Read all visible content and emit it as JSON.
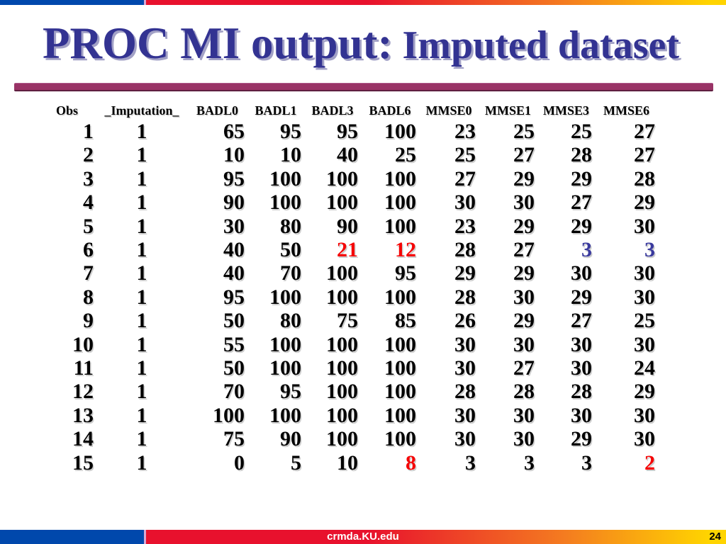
{
  "slide": {
    "title_part1": "PROC MI output:",
    "title_part2": "Imputed dataset",
    "footer": {
      "site": "crmda.KU.edu",
      "page_number": "24"
    }
  },
  "table": {
    "columns": [
      "Obs",
      "_Imputation_",
      "BADL0",
      "BADL1",
      "BADL3",
      "BADL6",
      "MMSE0",
      "MMSE1",
      "MMSE3",
      "MMSE6"
    ],
    "rows": [
      [
        "1",
        "1",
        "65",
        "95",
        "95",
        "100",
        "23",
        "25",
        "25",
        "27"
      ],
      [
        "2",
        "1",
        "10",
        "10",
        "40",
        "25",
        "25",
        "27",
        "28",
        "27"
      ],
      [
        "3",
        "1",
        "95",
        "100",
        "100",
        "100",
        "27",
        "29",
        "29",
        "28"
      ],
      [
        "4",
        "1",
        "90",
        "100",
        "100",
        "100",
        "30",
        "30",
        "27",
        "29"
      ],
      [
        "5",
        "1",
        "30",
        "80",
        "90",
        "100",
        "23",
        "29",
        "29",
        "30"
      ],
      [
        "6",
        "1",
        "40",
        "50",
        {
          "v": "21",
          "c": "red"
        },
        {
          "v": "12",
          "c": "red"
        },
        "28",
        "27",
        {
          "v": "3",
          "c": "blue"
        },
        {
          "v": "3",
          "c": "blue"
        }
      ],
      [
        "7",
        "1",
        "40",
        "70",
        "100",
        "95",
        "29",
        "29",
        "30",
        "30"
      ],
      [
        "8",
        "1",
        "95",
        "100",
        "100",
        "100",
        "28",
        "30",
        "29",
        "30"
      ],
      [
        "9",
        "1",
        "50",
        "80",
        "75",
        "85",
        "26",
        "29",
        "27",
        "25"
      ],
      [
        "10",
        "1",
        "55",
        "100",
        "100",
        "100",
        "30",
        "30",
        "30",
        "30"
      ],
      [
        "11",
        "1",
        "50",
        "100",
        "100",
        "100",
        "30",
        "27",
        "30",
        "24"
      ],
      [
        "12",
        "1",
        "70",
        "95",
        "100",
        "100",
        "28",
        "28",
        "28",
        "29"
      ],
      [
        "13",
        "1",
        "100",
        "100",
        "100",
        "100",
        "30",
        "30",
        "30",
        "30"
      ],
      [
        "14",
        "1",
        "75",
        "90",
        "100",
        "100",
        "30",
        "30",
        "29",
        "30"
      ],
      [
        "15",
        "1",
        "0",
        "5",
        "10",
        {
          "v": "8",
          "c": "red"
        },
        "3",
        "3",
        "3",
        {
          "v": "2",
          "c": "red"
        }
      ]
    ],
    "legend_note_colors": {
      "red": "imputed value highlighted red",
      "blue": "imputed value highlighted blue"
    }
  },
  "colors": {
    "title-blue": "#333392",
    "title-shadow": "#a2a1c6",
    "imputed-red": "#f50506",
    "imputed-blue": "#3a3a9e",
    "bar-blue": "#0048ac",
    "bar-red": "#e8112d",
    "bar-orange": "#f47b20",
    "bar-yellow": "#ffd400",
    "rule-maroon": "#993366",
    "footer-text": "#ffffff",
    "page-number-color": "#000000"
  }
}
